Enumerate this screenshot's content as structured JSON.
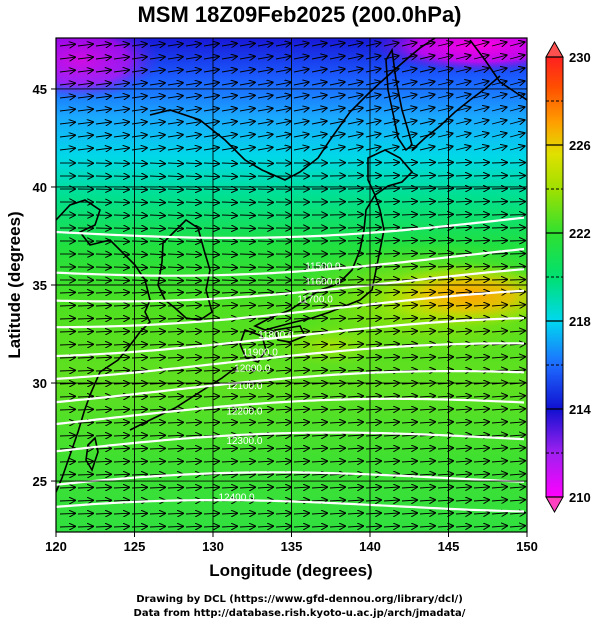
{
  "title": "MSM 18Z09Feb2025 (200.0hPa)",
  "chart_data": {
    "type": "heatmap",
    "title": "MSM 18Z09Feb2025 (200.0hPa)",
    "xlabel": "Longitude (degrees)",
    "ylabel": "Latitude  (degrees)",
    "xlim": [
      120,
      150
    ],
    "ylim": [
      22.4,
      47.6
    ],
    "x_ticks": [
      "120",
      "125",
      "130",
      "135",
      "140",
      "145",
      "150"
    ],
    "y_ticks": [
      "25",
      "30",
      "35",
      "40",
      "45"
    ],
    "x_tick_values": [
      120,
      125,
      130,
      135,
      140,
      145,
      150
    ],
    "y_tick_values": [
      25,
      30,
      35,
      40,
      45
    ],
    "grid": true,
    "colorbar": {
      "min": 210,
      "max": 230,
      "labels": [
        "230",
        "226",
        "222",
        "218",
        "214",
        "210"
      ],
      "label_values": [
        230,
        226,
        222,
        218,
        214,
        210
      ],
      "colors": [
        "#ff00ff",
        "#a020f0",
        "#1010d0",
        "#1e6bff",
        "#00d8f0",
        "#00e070",
        "#30e030",
        "#a0e000",
        "#e0e000",
        "#ffa000",
        "#ff5000",
        "#ff2020"
      ]
    },
    "contour_labels": [
      {
        "text": "11500.0",
        "lon": 137.0,
        "lat": 35.8
      },
      {
        "text": "11600.0",
        "lon": 137.0,
        "lat": 35.0
      },
      {
        "text": "11700.0",
        "lon": 136.5,
        "lat": 34.1
      },
      {
        "text": "11800.0",
        "lon": 134.0,
        "lat": 32.3
      },
      {
        "text": "11900.0",
        "lon": 133.0,
        "lat": 31.4
      },
      {
        "text": "12000.0",
        "lon": 132.5,
        "lat": 30.6
      },
      {
        "text": "12100.0",
        "lon": 132.0,
        "lat": 29.7
      },
      {
        "text": "12200.0",
        "lon": 132.0,
        "lat": 28.4
      },
      {
        "text": "12300.0",
        "lon": 132.0,
        "lat": 26.9
      },
      {
        "text": "12400.0",
        "lon": 131.5,
        "lat": 24.0
      }
    ]
  },
  "credits": {
    "line1": "Drawing by DCL (https://www.gfd-dennou.org/library/dcl/)",
    "line2": "Data from http://database.rish.kyoto-u.ac.jp/arch/jmadata/"
  },
  "colors": {
    "land_outline": "#000000",
    "contour": "#ffffff",
    "arrows": "#000000"
  }
}
